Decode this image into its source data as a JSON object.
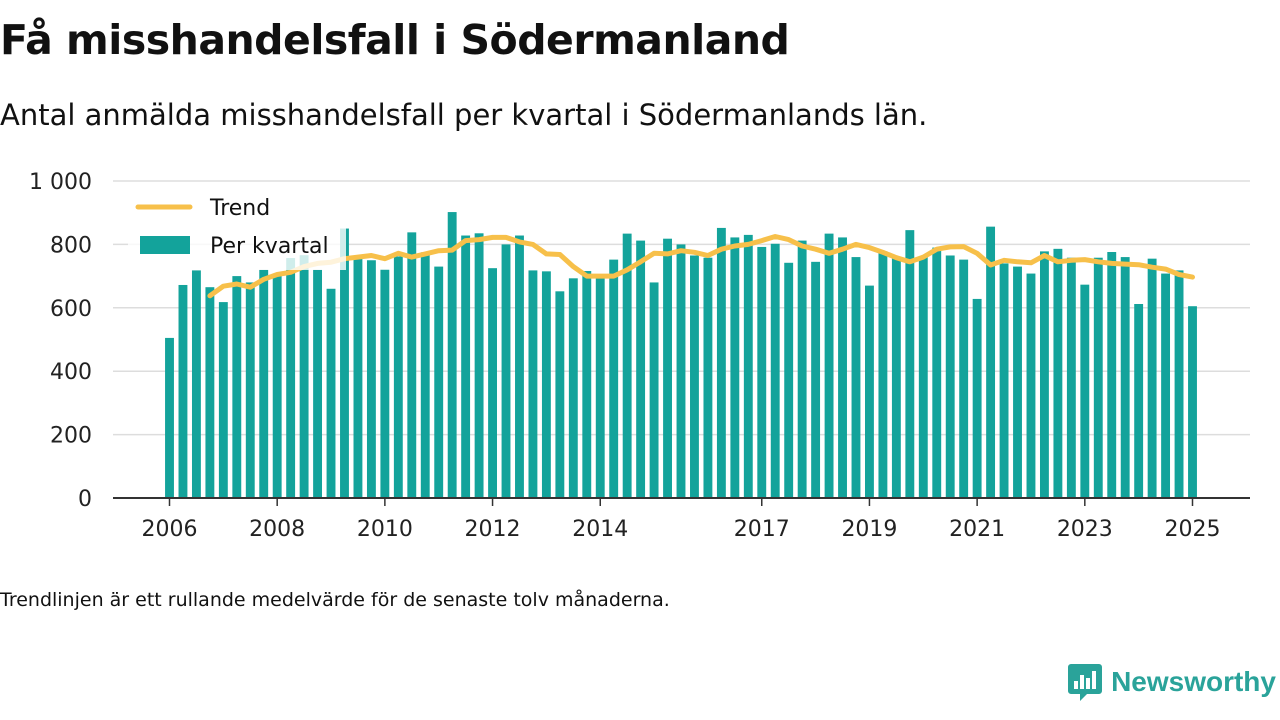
{
  "header": {
    "title": "Få misshandelsfall i Södermanland",
    "subtitle": "Antal anmälda misshandelsfall per kvartal i Södermanlands län."
  },
  "footnote": "Trendlinjen är ett rullande medelvärde för de senaste tolv månaderna.",
  "brand": {
    "name": "Newsworthy",
    "icon": "newsworthy-logo-icon",
    "color": "#2aa39a"
  },
  "colors": {
    "bars": "#13a39b",
    "trend": "#f7c04a",
    "grid": "#dddddd",
    "axis": "#333333"
  },
  "chart_data": {
    "type": "bar",
    "title": "",
    "xlabel": "",
    "ylabel": "",
    "x_range": [
      "2006-Q1",
      "2025-Q1"
    ],
    "ylim": [
      0,
      1000
    ],
    "yticks": [
      0,
      200,
      400,
      600,
      800,
      1000
    ],
    "ytick_labels": [
      "0",
      "200",
      "400",
      "600",
      "800",
      "1 000"
    ],
    "xticks": [
      "2006",
      "2008",
      "2010",
      "2012",
      "2014",
      "2017",
      "2019",
      "2021",
      "2023",
      "2025"
    ],
    "grid": true,
    "legend": {
      "position": "top-left",
      "entries": [
        "Trend",
        "Per kvartal"
      ]
    },
    "series": [
      {
        "name": "Per kvartal",
        "kind": "bar",
        "x": [
          "2006-Q1",
          "2006-Q2",
          "2006-Q3",
          "2006-Q4",
          "2007-Q1",
          "2007-Q2",
          "2007-Q3",
          "2007-Q4",
          "2008-Q1",
          "2008-Q2",
          "2008-Q3",
          "2008-Q4",
          "2009-Q1",
          "2009-Q2",
          "2009-Q3",
          "2009-Q4",
          "2010-Q1",
          "2010-Q2",
          "2010-Q3",
          "2010-Q4",
          "2011-Q1",
          "2011-Q2",
          "2011-Q3",
          "2011-Q4",
          "2012-Q1",
          "2012-Q2",
          "2012-Q3",
          "2012-Q4",
          "2013-Q1",
          "2013-Q2",
          "2013-Q3",
          "2013-Q4",
          "2014-Q1",
          "2014-Q2",
          "2014-Q3",
          "2014-Q4",
          "2015-Q1",
          "2015-Q2",
          "2015-Q3",
          "2015-Q4",
          "2016-Q1",
          "2016-Q2",
          "2016-Q3",
          "2016-Q4",
          "2017-Q1",
          "2017-Q2",
          "2017-Q3",
          "2017-Q4",
          "2018-Q1",
          "2018-Q2",
          "2018-Q3",
          "2018-Q4",
          "2019-Q1",
          "2019-Q2",
          "2019-Q3",
          "2019-Q4",
          "2020-Q1",
          "2020-Q2",
          "2020-Q3",
          "2020-Q4",
          "2021-Q1",
          "2021-Q2",
          "2021-Q3",
          "2021-Q4",
          "2022-Q1",
          "2022-Q2",
          "2022-Q3",
          "2022-Q4",
          "2023-Q1",
          "2023-Q2",
          "2023-Q3",
          "2023-Q4",
          "2024-Q1",
          "2024-Q2",
          "2024-Q3",
          "2024-Q4",
          "2025-Q1"
        ],
        "values": [
          505,
          672,
          718,
          665,
          618,
          700,
          680,
          720,
          706,
          757,
          766,
          720,
          660,
          850,
          762,
          750,
          720,
          762,
          838,
          775,
          730,
          902,
          828,
          835,
          725,
          800,
          828,
          718,
          715,
          652,
          693,
          716,
          693,
          752,
          834,
          812,
          680,
          818,
          800,
          765,
          758,
          852,
          822,
          830,
          792,
          802,
          742,
          812,
          745,
          834,
          822,
          760,
          670,
          778,
          760,
          845,
          760,
          790,
          765,
          752,
          628,
          856,
          740,
          730,
          708,
          778,
          786,
          758,
          673,
          758,
          776,
          760,
          612,
          755,
          708,
          718,
          605
        ]
      },
      {
        "name": "Trend",
        "kind": "line",
        "x": [
          "2006-Q4",
          "2007-Q1",
          "2007-Q2",
          "2007-Q3",
          "2007-Q4",
          "2008-Q1",
          "2008-Q2",
          "2008-Q3",
          "2008-Q4",
          "2009-Q1",
          "2009-Q2",
          "2009-Q3",
          "2009-Q4",
          "2010-Q1",
          "2010-Q2",
          "2010-Q3",
          "2010-Q4",
          "2011-Q1",
          "2011-Q2",
          "2011-Q3",
          "2011-Q4",
          "2012-Q1",
          "2012-Q2",
          "2012-Q3",
          "2012-Q4",
          "2013-Q1",
          "2013-Q2",
          "2013-Q3",
          "2013-Q4",
          "2014-Q1",
          "2014-Q2",
          "2014-Q3",
          "2014-Q4",
          "2015-Q1",
          "2015-Q2",
          "2015-Q3",
          "2015-Q4",
          "2016-Q1",
          "2016-Q2",
          "2016-Q3",
          "2016-Q4",
          "2017-Q1",
          "2017-Q2",
          "2017-Q3",
          "2017-Q4",
          "2018-Q1",
          "2018-Q2",
          "2018-Q3",
          "2018-Q4",
          "2019-Q1",
          "2019-Q2",
          "2019-Q3",
          "2019-Q4",
          "2020-Q1",
          "2020-Q2",
          "2020-Q3",
          "2020-Q4",
          "2021-Q1",
          "2021-Q2",
          "2021-Q3",
          "2021-Q4",
          "2022-Q1",
          "2022-Q2",
          "2022-Q3",
          "2022-Q4",
          "2023-Q1",
          "2023-Q2",
          "2023-Q3",
          "2023-Q4",
          "2024-Q1",
          "2024-Q2",
          "2024-Q3",
          "2024-Q4",
          "2025-Q1"
        ],
        "values": [
          638,
          668,
          675,
          665,
          690,
          705,
          712,
          730,
          740,
          744,
          755,
          760,
          765,
          755,
          772,
          760,
          770,
          780,
          782,
          812,
          815,
          822,
          822,
          808,
          800,
          770,
          768,
          730,
          700,
          700,
          700,
          720,
          745,
          772,
          770,
          780,
          775,
          765,
          785,
          795,
          800,
          812,
          825,
          815,
          795,
          785,
          772,
          785,
          800,
          790,
          775,
          758,
          745,
          760,
          785,
          792,
          793,
          772,
          735,
          750,
          745,
          742,
          765,
          745,
          750,
          752,
          745,
          740,
          738,
          736,
          728,
          722,
          705,
          697
        ]
      }
    ]
  }
}
